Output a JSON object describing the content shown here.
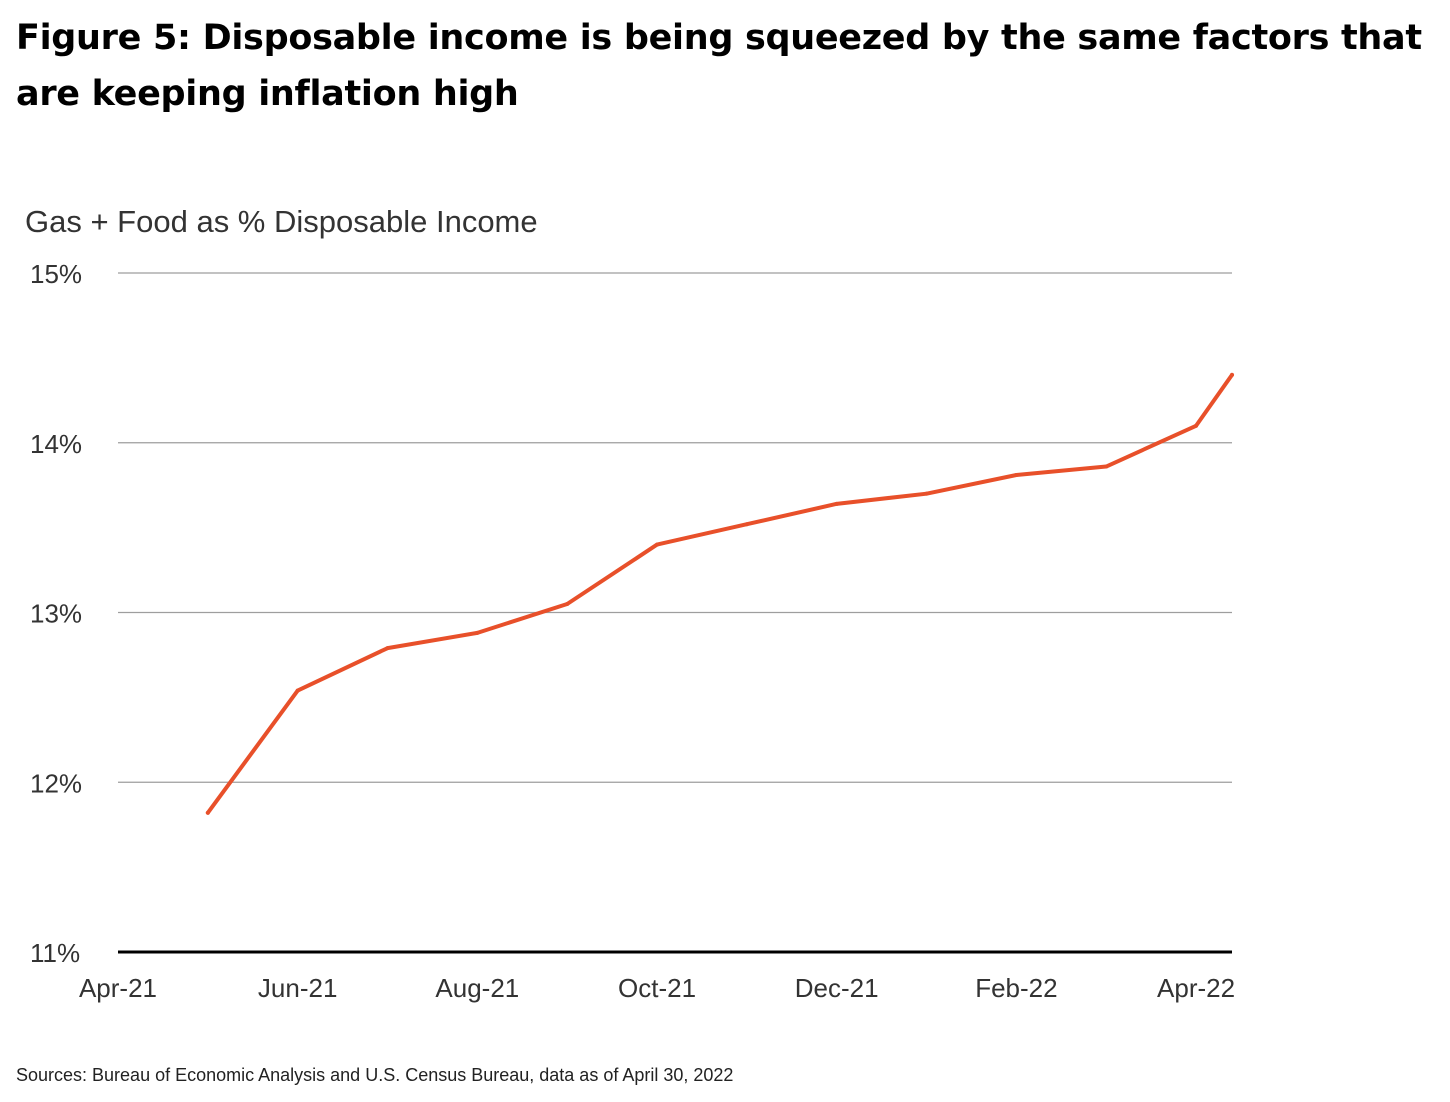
{
  "figure": {
    "title": "Figure 5: Disposable income is being squeezed by the same factors that are keeping inflation high",
    "source": "Sources: Bureau of Economic Analysis and U.S. Census Bureau, data as of April 30, 2022"
  },
  "colors": {
    "line": "#E8502A",
    "grid": "#9e9e9e",
    "axis": "#000000",
    "text": "#333333"
  },
  "chart_data": {
    "type": "line",
    "title": "Gas + Food as % Disposable Income",
    "xlabel": "",
    "ylabel": "Gas + Food as % Disposable Income",
    "x_tick_labels": [
      "Apr-21",
      "Jun-21",
      "Aug-21",
      "Oct-21",
      "Dec-21",
      "Feb-22",
      "Apr-22"
    ],
    "y_tick_labels": [
      "11%",
      "12%",
      "13%",
      "14%",
      "15%"
    ],
    "y_ticks": [
      11,
      12,
      13,
      14,
      15
    ],
    "ylim": [
      11,
      15
    ],
    "x_index_range": [
      0,
      12.4
    ],
    "grid": true,
    "series": [
      {
        "name": "Gas + Food as % Disposable Income",
        "x": [
          "May-21",
          "Jun-21",
          "Jul-21",
          "Aug-21",
          "Sep-21",
          "Oct-21",
          "Nov-21",
          "Dec-21",
          "Jan-22",
          "Feb-22",
          "Mar-22",
          "Apr-22",
          "May-22"
        ],
        "x_index": [
          1,
          2,
          3,
          4,
          5,
          6,
          7,
          8,
          9,
          10,
          11,
          12,
          12.4
        ],
        "values": [
          11.82,
          12.54,
          12.79,
          12.88,
          13.05,
          13.4,
          13.52,
          13.64,
          13.7,
          13.81,
          13.86,
          14.1,
          14.4
        ]
      }
    ]
  }
}
